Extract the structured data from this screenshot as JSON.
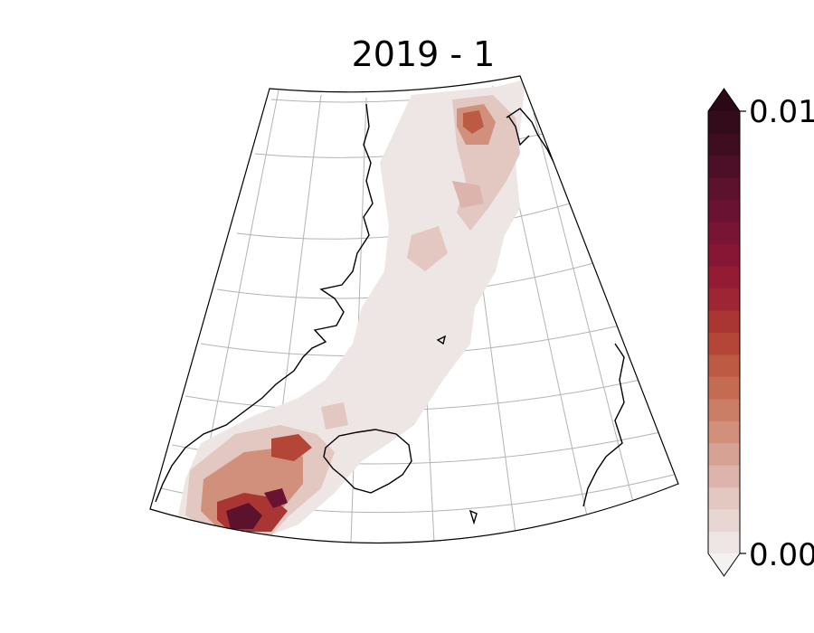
{
  "title": "2019 - 1",
  "colorbar": {
    "max_label": "0.01",
    "min_label": "0.00",
    "extend": "both",
    "levels": 20,
    "colors": [
      "#ede6e5",
      "#e8d6d3",
      "#e3c7c1",
      "#dcb4ab",
      "#d6a293",
      "#d0907b",
      "#ca7e65",
      "#c46c52",
      "#bd5a44",
      "#b44638",
      "#a93633",
      "#9e2533",
      "#931b33",
      "#861634",
      "#781434",
      "#6a1232",
      "#5c112d",
      "#4d0f27",
      "#3f0d20",
      "#330b1a"
    ],
    "over_color": "#2a0815",
    "under_color": "#f4f1f0"
  },
  "map": {
    "projection": "conic",
    "region": "North Atlantic / Greenland–Iceland–Norway",
    "gridlines": true,
    "coastline_color": "#000000",
    "gridline_color": "#aaaaaa"
  }
}
